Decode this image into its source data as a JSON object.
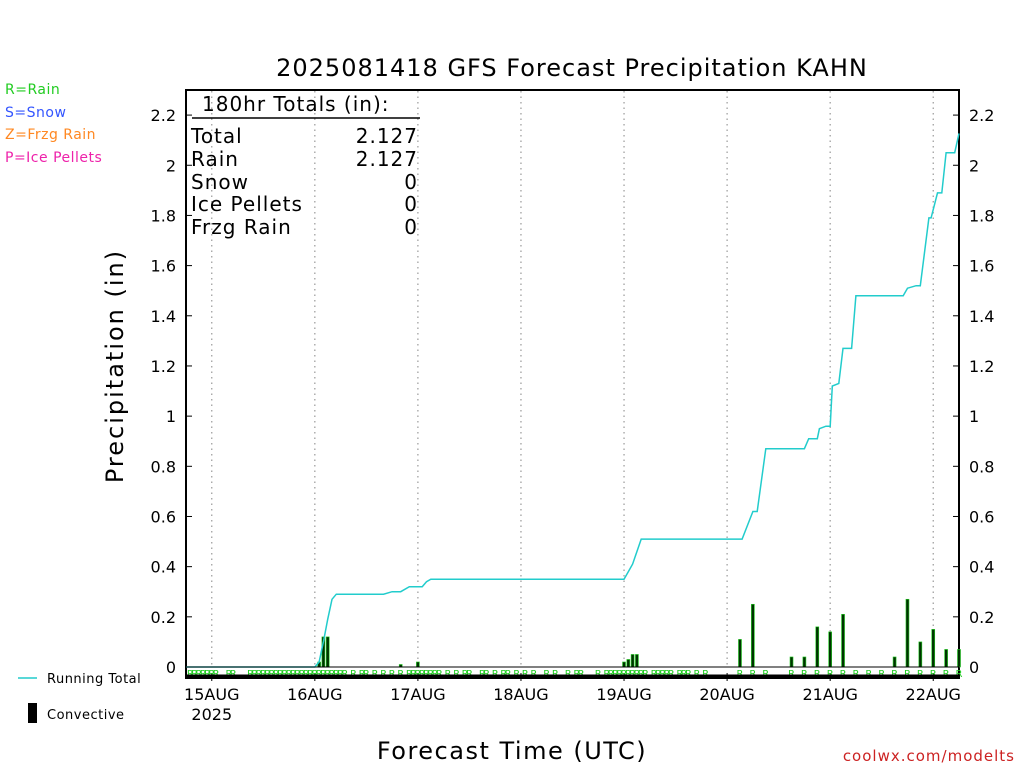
{
  "legend_types": [
    {
      "label": "R=Rain",
      "color": "#22cc22"
    },
    {
      "label": "S=Snow",
      "color": "#3355ff"
    },
    {
      "label": "Z=Frzg Rain",
      "color": "#ff8822"
    },
    {
      "label": "P=Ice Pellets",
      "color": "#ee22aa"
    }
  ],
  "totals_box": {
    "title": "180hr Totals (in):",
    "rows": [
      {
        "label": "Total",
        "value": "2.127"
      },
      {
        "label": "Rain",
        "value": "2.127"
      },
      {
        "label": "Snow",
        "value": "0"
      },
      {
        "label": "Ice Pellets",
        "value": "0"
      },
      {
        "label": "Frzg Rain",
        "value": "0"
      }
    ]
  },
  "series_legend": {
    "running_total": "Running Total",
    "convective": "Convective"
  },
  "credit": "coolwx.com/modelts",
  "colors": {
    "running_total": "#22cccc",
    "bars": "#003300",
    "bar_edge": "#22cc22",
    "rain_marker": "#22cc22",
    "grid": "#999999",
    "credit": "#cc2222"
  },
  "chart_data": {
    "type": "line",
    "title": "2025081418 GFS Forecast Precipitation KAHN",
    "xlabel": "Forecast Time (UTC)",
    "ylabel": "Precipitation (in)",
    "x_unit": "forecast hour",
    "xlim": [
      0,
      180
    ],
    "ylim": [
      0,
      2.3
    ],
    "y_ticks": [
      0,
      0.2,
      0.4,
      0.6,
      0.8,
      1,
      1.2,
      1.4,
      1.6,
      1.8,
      2,
      2.2
    ],
    "y_tick_labels": [
      "0",
      "0.2",
      "0.4",
      "0.6",
      "0.8",
      "1",
      "1.2",
      "1.4",
      "1.6",
      "1.8",
      "2",
      "2.2"
    ],
    "x_ticks": [
      {
        "x": 6,
        "label": "15AUG",
        "sublabel": "2025"
      },
      {
        "x": 30,
        "label": "16AUG"
      },
      {
        "x": 54,
        "label": "17AUG"
      },
      {
        "x": 78,
        "label": "18AUG"
      },
      {
        "x": 102,
        "label": "19AUG"
      },
      {
        "x": 126,
        "label": "20AUG"
      },
      {
        "x": 150,
        "label": "21AUG"
      },
      {
        "x": 174,
        "label": "22AUG"
      }
    ],
    "grid": "vertical dotted at day boundaries",
    "series": [
      {
        "name": "Running Total",
        "x": [
          0,
          30,
          31,
          32,
          33,
          34,
          35,
          36,
          42,
          46,
          48,
          50,
          52,
          54,
          55,
          56,
          57,
          60,
          70,
          80,
          90,
          102,
          103,
          104,
          105,
          106,
          110,
          120,
          126,
          129,
          129.5,
          132,
          133,
          135,
          141,
          142,
          144,
          145,
          147,
          147.5,
          149,
          150,
          150.5,
          152,
          153,
          155,
          156,
          156.5,
          164,
          167,
          168,
          170,
          171,
          173,
          173.5,
          175,
          176,
          177,
          179,
          180
        ],
        "y": [
          0,
          0,
          0.02,
          0.1,
          0.19,
          0.27,
          0.29,
          0.29,
          0.29,
          0.29,
          0.3,
          0.3,
          0.32,
          0.32,
          0.32,
          0.34,
          0.35,
          0.35,
          0.35,
          0.35,
          0.35,
          0.35,
          0.38,
          0.41,
          0.46,
          0.51,
          0.51,
          0.51,
          0.51,
          0.51,
          0.51,
          0.62,
          0.62,
          0.87,
          0.87,
          0.87,
          0.87,
          0.91,
          0.91,
          0.95,
          0.96,
          0.96,
          1.12,
          1.13,
          1.27,
          1.27,
          1.48,
          1.48,
          1.48,
          1.48,
          1.51,
          1.52,
          1.52,
          1.79,
          1.79,
          1.89,
          1.89,
          2.05,
          2.05,
          2.127
        ]
      },
      {
        "name": "Convective",
        "type": "bar",
        "x": [
          31,
          32,
          33,
          50,
          54,
          102,
          103,
          104,
          105,
          129,
          132,
          141,
          144,
          147,
          150,
          153,
          165,
          168,
          171,
          174,
          177,
          180
        ],
        "y": [
          0.02,
          0.12,
          0.12,
          0.01,
          0.02,
          0.02,
          0.03,
          0.05,
          0.05,
          0.11,
          0.25,
          0.04,
          0.04,
          0.16,
          0.14,
          0.21,
          0.04,
          0.27,
          0.1,
          0.15,
          0.07,
          0.07
        ]
      }
    ],
    "precip_type_markers": {
      "symbol": "R",
      "x": [
        1,
        2,
        3,
        4,
        5,
        6,
        7,
        10,
        11,
        15,
        16,
        17,
        18,
        19,
        20,
        21,
        22,
        23,
        24,
        25,
        26,
        27,
        28,
        29,
        30,
        31,
        32,
        33,
        34,
        35,
        36,
        37,
        39,
        41,
        42,
        44,
        46,
        48,
        50,
        52,
        53,
        54,
        55,
        56,
        57,
        58,
        59,
        61,
        63,
        65,
        66,
        69,
        70,
        72,
        74,
        75,
        77,
        79,
        81,
        84,
        86,
        89,
        91,
        92,
        96,
        98,
        99,
        100,
        101,
        102,
        103,
        104,
        105,
        106,
        107,
        109,
        110,
        111,
        112,
        113,
        115,
        116,
        117,
        119,
        121,
        129,
        132,
        135,
        141,
        144,
        147,
        150,
        153,
        156,
        159,
        162,
        165,
        168,
        171,
        174,
        177,
        180
      ]
    }
  }
}
